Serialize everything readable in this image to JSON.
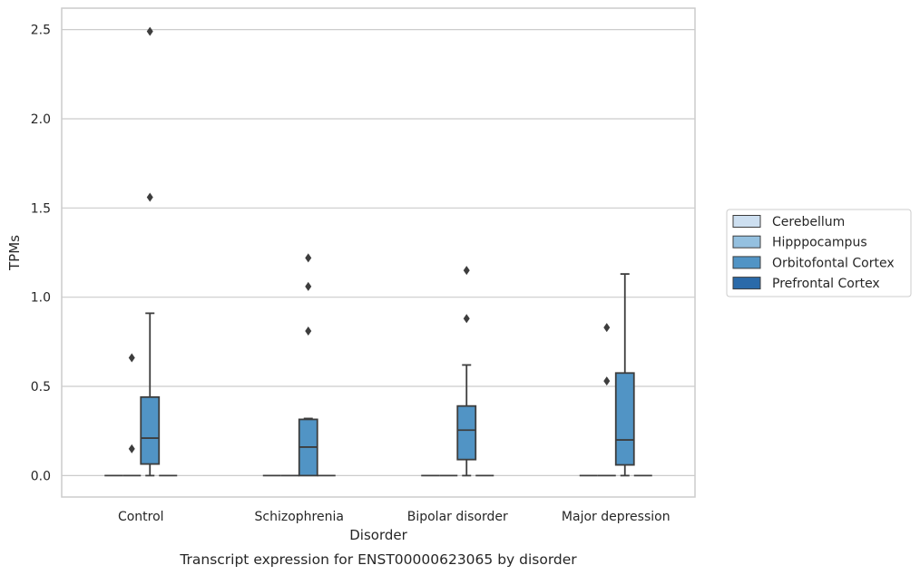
{
  "chart_data": {
    "type": "box",
    "xlabel": "Disorder",
    "ylabel": "TPMs",
    "caption": "Transcript expression for ENST00000623065 by disorder",
    "ylim": [
      -0.12,
      2.62
    ],
    "yticks": [
      0.0,
      0.5,
      1.0,
      1.5,
      2.0,
      2.5
    ],
    "ytick_labels": [
      "0.0",
      "0.5",
      "1.0",
      "1.5",
      "2.0",
      "2.5"
    ],
    "grid": "horizontal",
    "legend_position": "right",
    "categories": [
      "Control",
      "Schizophrenia",
      "Bipolar disorder",
      "Major depression"
    ],
    "series": [
      {
        "name": "Cerebellum",
        "color": "#cddff0",
        "boxes": [
          {
            "q1": 0,
            "median": 0,
            "q3": 0,
            "whisker_low": 0,
            "whisker_high": 0,
            "outliers": []
          },
          {
            "q1": 0,
            "median": 0,
            "q3": 0,
            "whisker_low": 0,
            "whisker_high": 0,
            "outliers": []
          },
          {
            "q1": 0,
            "median": 0,
            "q3": 0,
            "whisker_low": 0,
            "whisker_high": 0,
            "outliers": []
          },
          {
            "q1": 0,
            "median": 0,
            "q3": 0,
            "whisker_low": 0,
            "whisker_high": 0,
            "outliers": []
          }
        ]
      },
      {
        "name": "Hipppocampus",
        "color": "#94c0df",
        "boxes": [
          {
            "q1": 0,
            "median": 0,
            "q3": 0,
            "whisker_low": 0,
            "whisker_high": 0,
            "outliers": [
              0.66,
              0.15
            ]
          },
          {
            "q1": 0,
            "median": 0,
            "q3": 0,
            "whisker_low": 0,
            "whisker_high": 0,
            "outliers": []
          },
          {
            "q1": 0,
            "median": 0,
            "q3": 0,
            "whisker_low": 0,
            "whisker_high": 0,
            "outliers": []
          },
          {
            "q1": 0,
            "median": 0,
            "q3": 0,
            "whisker_low": 0,
            "whisker_high": 0,
            "outliers": [
              0.83,
              0.53
            ]
          }
        ]
      },
      {
        "name": "Orbitofontal Cortex",
        "color": "#5194c5",
        "boxes": [
          {
            "q1": 0.065,
            "median": 0.21,
            "q3": 0.44,
            "whisker_low": 0,
            "whisker_high": 0.91,
            "outliers": [
              2.49,
              1.56
            ]
          },
          {
            "q1": 0,
            "median": 0.16,
            "q3": 0.315,
            "whisker_low": 0,
            "whisker_high": 0.32,
            "outliers": [
              1.22,
              1.06,
              0.81
            ]
          },
          {
            "q1": 0.09,
            "median": 0.255,
            "q3": 0.39,
            "whisker_low": 0,
            "whisker_high": 0.62,
            "outliers": [
              1.15,
              0.88
            ]
          },
          {
            "q1": 0.06,
            "median": 0.2,
            "q3": 0.575,
            "whisker_low": 0,
            "whisker_high": 1.13,
            "outliers": []
          }
        ]
      },
      {
        "name": "Prefrontal Cortex",
        "color": "#2a6aa9",
        "boxes": [
          {
            "q1": 0,
            "median": 0,
            "q3": 0,
            "whisker_low": 0,
            "whisker_high": 0,
            "outliers": []
          },
          {
            "q1": 0,
            "median": 0,
            "q3": 0,
            "whisker_low": 0,
            "whisker_high": 0,
            "outliers": []
          },
          {
            "q1": 0,
            "median": 0,
            "q3": 0,
            "whisker_low": 0,
            "whisker_high": 0,
            "outliers": []
          },
          {
            "q1": 0,
            "median": 0,
            "q3": 0,
            "whisker_low": 0,
            "whisker_high": 0,
            "outliers": []
          }
        ]
      }
    ]
  }
}
